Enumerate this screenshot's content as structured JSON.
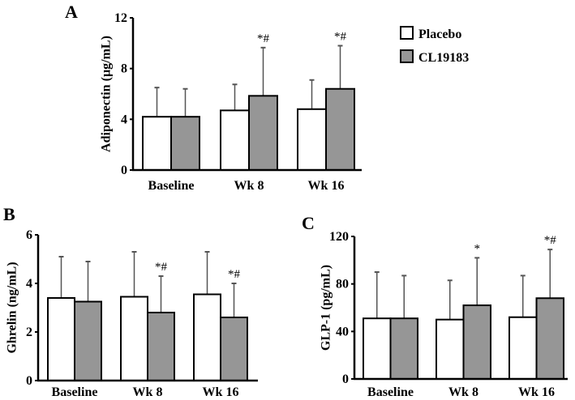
{
  "legend": {
    "items": [
      {
        "label": "Placebo",
        "color": "#ffffff"
      },
      {
        "label": "CL19183",
        "color": "#969696"
      }
    ]
  },
  "chart_data": [
    {
      "type": "bar",
      "panel": "A",
      "ylabel": "Adiponectin (µg/mL)",
      "ylim": [
        0,
        12
      ],
      "yticks": [
        0,
        4,
        8,
        12
      ],
      "categories": [
        "Baseline",
        "Wk 8",
        "Wk 16"
      ],
      "series": [
        {
          "name": "Placebo",
          "values": [
            4.2,
            4.7,
            4.8
          ],
          "error_upper": [
            6.5,
            6.75,
            7.1
          ]
        },
        {
          "name": "CL19183",
          "values": [
            4.2,
            5.85,
            6.4
          ],
          "error_upper": [
            6.4,
            9.65,
            9.8
          ]
        }
      ],
      "annotations": [
        "",
        "*#",
        "*#"
      ]
    },
    {
      "type": "bar",
      "panel": "B",
      "ylabel": "Ghrelin (ng/mL)",
      "ylim": [
        0,
        6
      ],
      "yticks": [
        0,
        2,
        4,
        6
      ],
      "categories": [
        "Baseline",
        "Wk 8",
        "Wk 16"
      ],
      "series": [
        {
          "name": "Placebo",
          "values": [
            3.4,
            3.45,
            3.55
          ],
          "error_upper": [
            5.1,
            5.3,
            5.3
          ]
        },
        {
          "name": "CL19183",
          "values": [
            3.25,
            2.8,
            2.6
          ],
          "error_upper": [
            4.9,
            4.3,
            4.0
          ]
        }
      ],
      "annotations": [
        "",
        "*#",
        "*#"
      ]
    },
    {
      "type": "bar",
      "panel": "C",
      "ylabel": "GLP-1 (pg/mL)",
      "ylim": [
        0,
        120
      ],
      "yticks": [
        0,
        40,
        80,
        120
      ],
      "categories": [
        "Baseline",
        "Wk 8",
        "Wk 16"
      ],
      "series": [
        {
          "name": "Placebo",
          "values": [
            51,
            50,
            52
          ],
          "error_upper": [
            90,
            83,
            87
          ]
        },
        {
          "name": "CL19183",
          "values": [
            51,
            62,
            68
          ],
          "error_upper": [
            87,
            102,
            109
          ]
        }
      ],
      "annotations": [
        "",
        "*",
        "*#"
      ]
    }
  ]
}
